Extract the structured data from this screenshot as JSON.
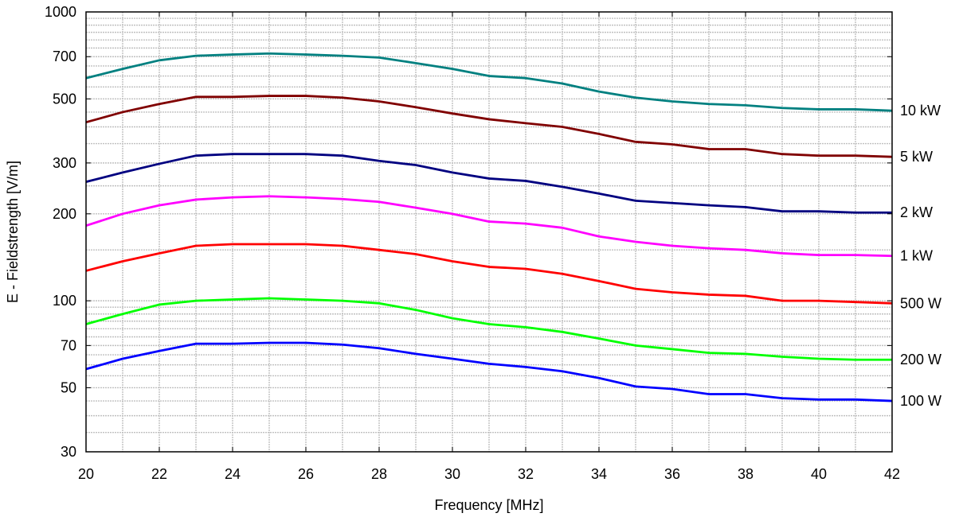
{
  "chart_data": {
    "type": "line",
    "xlabel": "Frequency [MHz]",
    "ylabel": "E - Fieldstrength [V/m]",
    "xlim": [
      20,
      42
    ],
    "ylim": [
      30,
      1000
    ],
    "yscale": "log",
    "grid": true,
    "legend": "right-edge labels",
    "x": [
      20,
      21,
      22,
      23,
      24,
      25,
      26,
      27,
      28,
      29,
      30,
      31,
      32,
      33,
      34,
      35,
      36,
      37,
      38,
      39,
      40,
      41,
      42
    ],
    "x_ticks": [
      "20",
      "22",
      "24",
      "26",
      "28",
      "30",
      "32",
      "34",
      "36",
      "38",
      "40",
      "42"
    ],
    "y_ticks": [
      "30",
      "50",
      "70",
      "100",
      "200",
      "300",
      "500",
      "700",
      "1000"
    ],
    "series": [
      {
        "name": "10 kW",
        "color": "#008080",
        "values": [
          590,
          635,
          680,
          705,
          712,
          718,
          712,
          705,
          695,
          665,
          635,
          600,
          590,
          565,
          530,
          505,
          490,
          480,
          475,
          465,
          460,
          460,
          455
        ]
      },
      {
        "name": "5 kW",
        "color": "#800000",
        "values": [
          415,
          450,
          480,
          508,
          508,
          512,
          512,
          505,
          490,
          468,
          445,
          425,
          412,
          400,
          378,
          355,
          348,
          335,
          335,
          322,
          318,
          318,
          315
        ]
      },
      {
        "name": "2 kW",
        "color": "#000080",
        "values": [
          258,
          278,
          298,
          318,
          322,
          322,
          322,
          318,
          305,
          295,
          278,
          265,
          260,
          248,
          235,
          222,
          218,
          214,
          211,
          204,
          204,
          202,
          202
        ]
      },
      {
        "name": "1 kW",
        "color": "#ff00ff",
        "values": [
          182,
          200,
          214,
          224,
          228,
          230,
          228,
          225,
          220,
          210,
          200,
          188,
          185,
          179,
          167,
          160,
          155,
          152,
          150,
          146,
          144,
          144,
          143
        ]
      },
      {
        "name": "500 W",
        "color": "#ff0000",
        "values": [
          127,
          137,
          146,
          155,
          157,
          157,
          157,
          155,
          150,
          145,
          137,
          131,
          129,
          124,
          117,
          110,
          107,
          105,
          104,
          100,
          100,
          99,
          98
        ]
      },
      {
        "name": "200 W",
        "color": "#00ff00",
        "values": [
          83,
          90,
          97,
          100,
          101,
          102,
          101,
          100,
          98,
          93,
          87,
          83,
          81,
          78,
          74,
          70,
          68,
          66,
          65.5,
          64,
          63,
          62.5,
          62.5
        ]
      },
      {
        "name": "100 W",
        "color": "#0000ff",
        "values": [
          58,
          63,
          67,
          71,
          71,
          71.5,
          71.5,
          70.5,
          68.5,
          65.5,
          63,
          60.5,
          59,
          57,
          54,
          50.5,
          49.5,
          47.5,
          47.5,
          46,
          45.5,
          45.5,
          45
        ]
      }
    ]
  }
}
